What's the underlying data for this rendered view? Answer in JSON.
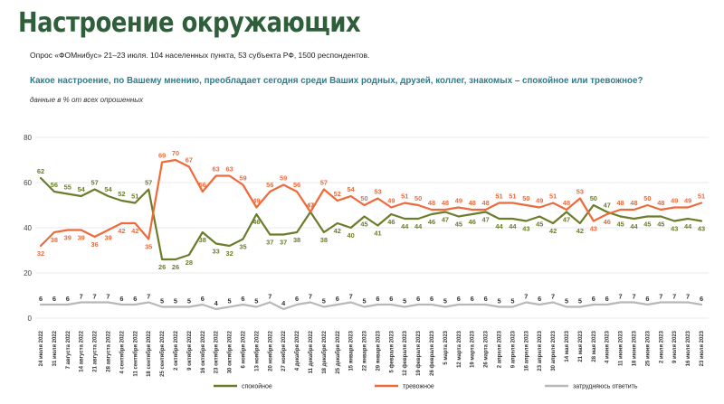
{
  "header": {
    "title": "Настроение окружающих",
    "subtitle": "Опрос «ФОМнибус» 21–23 июля. 104 населенных пункта, 53 субъекта РФ, 1500 респондентов.",
    "question": "Какое настроение, по Вашему мнению, преобладает сегодня среди Ваших родных, друзей, коллег, знакомых – спокойное или тревожное?",
    "unit_note": "данные в % от всех опрошенных"
  },
  "colors": {
    "title": "#2f5e3a",
    "question": "#2e7d8c",
    "calm": "#6b7d2a",
    "anxious": "#ef6a3a",
    "unsure": "#b8b8b8",
    "grid": "#e3e3e3"
  },
  "chart_data": {
    "type": "line",
    "xlabel": "",
    "ylabel": "",
    "ylim": [
      0,
      80
    ],
    "yticks": [
      0,
      20,
      40,
      60,
      80
    ],
    "grid": true,
    "legend_position": "bottom",
    "x": [
      "24 июля 2022",
      "31 июля 2022",
      "7 августа 2022",
      "14 августа 2022",
      "21 августа 2022",
      "28 августа 2022",
      "4 сентября 2022",
      "11 сентября 2022",
      "18 сентября 2022",
      "25 сентября 2022",
      "2 октября 2022",
      "9 октября 2022",
      "16 октября 2022",
      "23 октября 2022",
      "30 октября 2022",
      "6 ноября 2022",
      "13 ноября 2022",
      "20 ноября 2022",
      "27 ноября 2022",
      "4 декабря 2022",
      "11 декабря 2022",
      "18 декабря 2022",
      "25 декабря 2022",
      "15 января 2023",
      "22 января 2023",
      "29 января 2023",
      "5 февраля 2023",
      "12 февраля 2023",
      "19 февраля 2023",
      "26 февраля 2023",
      "5 марта 2023",
      "12 марта 2023",
      "19 марта 2023",
      "26 марта 2023",
      "2 апреля 2023",
      "9 апреля 2023",
      "16 апреля 2023",
      "23 апреля 2023",
      "30 апреля 2023",
      "14 мая 2023",
      "21 мая 2023",
      "28 мая 2023",
      "4 июня 2023",
      "11 июня 2023",
      "18 июня 2023",
      "25 июня 2023",
      "2 июля 2023",
      "9 июля 2023",
      "16 июля 2023",
      "23 июля 2023"
    ],
    "series": [
      {
        "name": "спокойное",
        "values": [
          62,
          56,
          55,
          54,
          57,
          54,
          52,
          51,
          57,
          26,
          26,
          28,
          38,
          33,
          32,
          35,
          46,
          37,
          37,
          38,
          47,
          38,
          42,
          40,
          45,
          41,
          46,
          44,
          44,
          46,
          47,
          45,
          46,
          47,
          44,
          44,
          43,
          45,
          42,
          47,
          42,
          50,
          47,
          45,
          44,
          45,
          45,
          43,
          44,
          43
        ]
      },
      {
        "name": "тревожное",
        "values": [
          32,
          38,
          39,
          39,
          36,
          39,
          42,
          42,
          35,
          69,
          70,
          67,
          56,
          63,
          63,
          59,
          49,
          56,
          59,
          56,
          47,
          57,
          52,
          54,
          50,
          53,
          49,
          51,
          50,
          48,
          48,
          49,
          48,
          48,
          51,
          51,
          50,
          49,
          51,
          48,
          53,
          43,
          46,
          48,
          48,
          50,
          48,
          49,
          49,
          51
        ]
      },
      {
        "name": "затрудняюсь ответить",
        "values": [
          6,
          6,
          6,
          7,
          7,
          7,
          6,
          6,
          7,
          5,
          5,
          5,
          6,
          4,
          5,
          6,
          5,
          7,
          4,
          6,
          7,
          5,
          6,
          7,
          5,
          6,
          6,
          5,
          6,
          6,
          5,
          6,
          6,
          6,
          5,
          5,
          7,
          6,
          7,
          5,
          5,
          6,
          6,
          7,
          7,
          6,
          7,
          7,
          7,
          6
        ]
      }
    ]
  }
}
